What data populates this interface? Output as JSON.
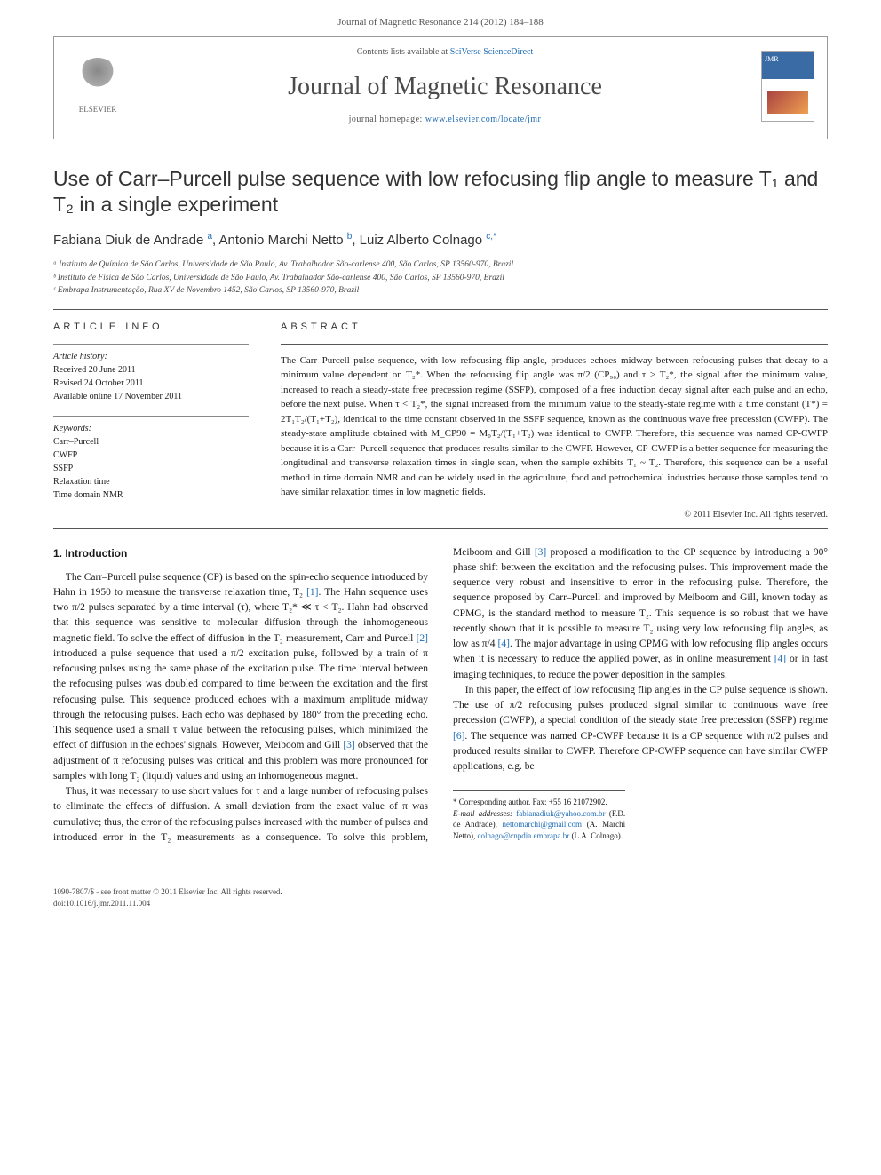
{
  "running_head": "Journal of Magnetic Resonance 214 (2012) 184–188",
  "header": {
    "contents_prefix": "Contents lists available at ",
    "contents_link": "SciVerse ScienceDirect",
    "journal_name": "Journal of Magnetic Resonance",
    "homepage_prefix": "journal homepage: ",
    "homepage_url": "www.elsevier.com/locate/jmr",
    "publisher_label": "ELSEVIER",
    "cover_label": "JMR"
  },
  "title": "Use of Carr–Purcell pulse sequence with low refocusing flip angle to measure T₁ and T₂ in a single experiment",
  "authors_html": "Fabiana Diuk de Andrade <sup>a</sup>, Antonio Marchi Netto <sup>b</sup>, Luiz Alberto Colnago <sup>c,*</sup>",
  "affiliations": [
    "ᵃ Instituto de Química de São Carlos, Universidade de São Paulo, Av. Trabalhador São-carlense 400, São Carlos, SP 13560-970, Brazil",
    "ᵇ Instituto de Física de São Carlos, Universidade de São Paulo, Av. Trabalhador São-carlense 400, São Carlos, SP 13560-970, Brazil",
    "ᶜ Embrapa Instrumentação, Rua XV de Novembro 1452, São Carlos, SP 13560-970, Brazil"
  ],
  "article_info": {
    "label": "ARTICLE INFO",
    "history_label": "Article history:",
    "history": [
      "Received 20 June 2011",
      "Revised 24 October 2011",
      "Available online 17 November 2011"
    ],
    "keywords_label": "Keywords:",
    "keywords": [
      "Carr–Purcell",
      "CWFP",
      "SSFP",
      "Relaxation time",
      "Time domain NMR"
    ]
  },
  "abstract": {
    "label": "ABSTRACT",
    "text": "The Carr–Purcell pulse sequence, with low refocusing flip angle, produces echoes midway between refocusing pulses that decay to a minimum value dependent on T₂*. When the refocusing flip angle was π/2 (CP₉₀) and τ > T₂*, the signal after the minimum value, increased to reach a steady-state free precession regime (SSFP), composed of a free induction decay signal after each pulse and an echo, before the next pulse. When τ < T₂*, the signal increased from the minimum value to the steady-state regime with a time constant (T*) = 2T₁T₂/(T₁+T₂), identical to the time constant observed in the SSFP sequence, known as the continuous wave free precession (CWFP). The steady-state amplitude obtained with M_CP90 = M₀T₂/(T₁+T₂) was identical to CWFP. Therefore, this sequence was named CP-CWFP because it is a Carr–Purcell sequence that produces results similar to the CWFP. However, CP-CWFP is a better sequence for measuring the longitudinal and transverse relaxation times in single scan, when the sample exhibits T₁ ~ T₂. Therefore, this sequence can be a useful method in time domain NMR and can be widely used in the agriculture, food and petrochemical industries because those samples tend to have similar relaxation times in low magnetic fields.",
    "copyright": "© 2011 Elsevier Inc. All rights reserved."
  },
  "section1": {
    "heading": "1. Introduction",
    "p1": "The Carr–Purcell pulse sequence (CP) is based on the spin-echo sequence introduced by Hahn in 1950 to measure the transverse relaxation time, T₂ [1]. The Hahn sequence uses two π/2 pulses separated by a time interval (τ), where T₂* ≪ τ < T₂. Hahn had observed that this sequence was sensitive to molecular diffusion through the inhomogeneous magnetic field. To solve the effect of diffusion in the T₂ measurement, Carr and Purcell [2] introduced a pulse sequence that used a π/2 excitation pulse, followed by a train of π refocusing pulses using the same phase of the excitation pulse. The time interval between the refocusing pulses was doubled compared to time between the excitation and the first refocusing pulse. This sequence produced echoes with a maximum amplitude midway through the refocusing pulses. Each echo was dephased by 180° from the preceding echo. This sequence used a small τ value between the refocusing pulses, which minimized the effect of diffusion in the echoes' signals. However, Meiboom and Gill [3] observed that the adjustment of π refocusing pulses was critical and this problem was more pronounced for samples with long T₂ (liquid) values and using an inhomogeneous magnet.",
    "p2": "Thus, it was necessary to use short values for τ and a large number of refocusing pulses to eliminate the effects of diffusion. A small deviation from the exact value of π was cumulative; thus, the error of the refocusing pulses increased with the number of pulses and introduced error in the T₂ measurements as a consequence. To solve this problem, Meiboom and Gill [3] proposed a modification to the CP sequence by introducing a 90° phase shift between the excitation and the refocusing pulses. This improvement made the sequence very robust and insensitive to error in the refocusing pulse. Therefore, the sequence proposed by Carr–Purcell and improved by Meiboom and Gill, known today as CPMG, is the standard method to measure T₂. This sequence is so robust that we have recently shown that it is possible to measure T₂ using very low refocusing flip angles, as low as π/4 [4]. The major advantage in using CPMG with low refocusing flip angles occurs when it is necessary to reduce the applied power, as in online measurement [4] or in fast imaging techniques, to reduce the power deposition in the samples.",
    "p3": "In this paper, the effect of low refocusing flip angles in the CP pulse sequence is shown. The use of π/2 refocusing pulses produced signal similar to continuous wave free precession (CWFP), a special condition of the steady state free precession (SSFP) regime [6]. The sequence was named CP-CWFP because it is a CP sequence with π/2 pulses and produced results similar to CWFP. Therefore CP-CWFP sequence can have similar CWFP applications, e.g. be"
  },
  "footnotes": {
    "corr": "* Corresponding author. Fax: +55 16 21072902.",
    "emails_label": "E-mail addresses: ",
    "emails": "fabianadiuk@yahoo.com.br (F.D. de Andrade), nettomarchi@gmail.com (A. Marchi Netto), colnago@cnpdia.embrapa.br (L.A. Colnago)."
  },
  "footer": {
    "line1": "1090-7807/$ - see front matter © 2011 Elsevier Inc. All rights reserved.",
    "line2": "doi:10.1016/j.jmr.2011.11.004"
  },
  "colors": {
    "link": "#1f6db5",
    "text": "#1a1a1a",
    "rule": "#555555",
    "header_gray": "#4a4a4a"
  }
}
